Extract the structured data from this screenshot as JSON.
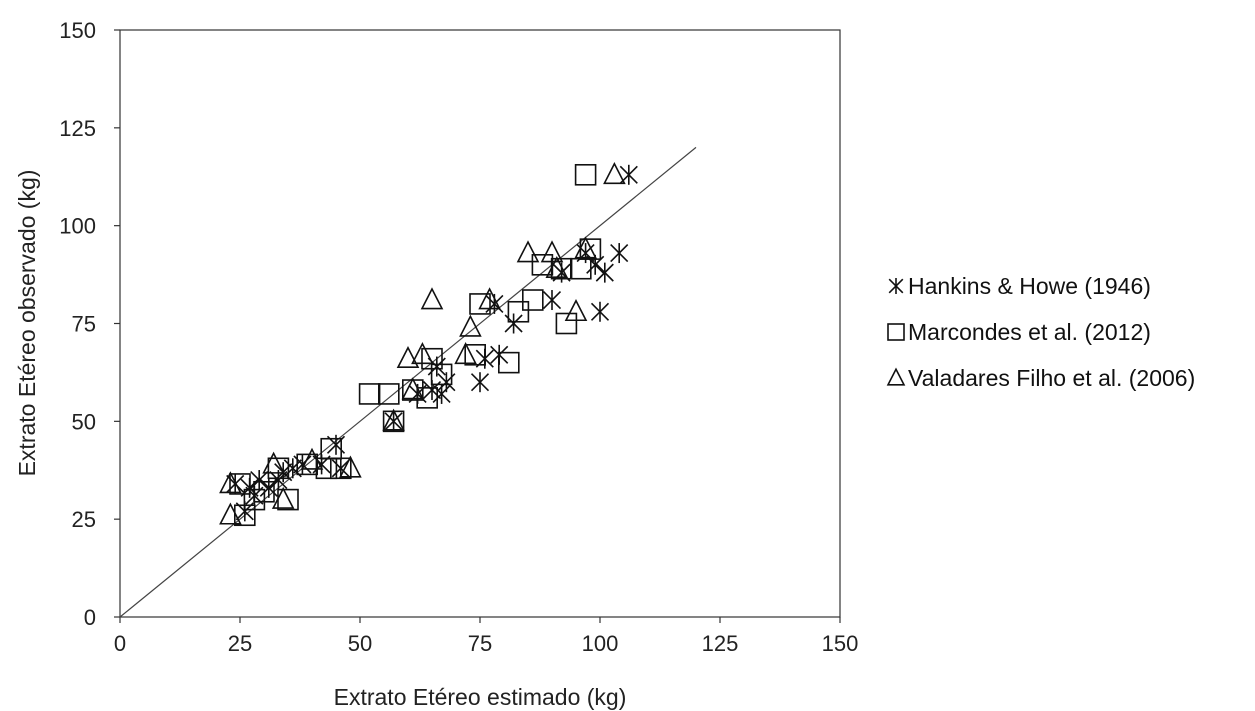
{
  "chart_data": {
    "type": "scatter",
    "title": "",
    "xlabel": "Extrato Etéreo estimado (kg)",
    "ylabel": "Extrato Etéreo observado (kg)",
    "xlim": [
      0,
      150
    ],
    "ylim": [
      0,
      150
    ],
    "xticks": [
      "0",
      "25",
      "50",
      "75",
      "100",
      "125",
      "150"
    ],
    "yticks": [
      "0",
      "25",
      "50",
      "75",
      "100",
      "125",
      "150"
    ],
    "grid": false,
    "legend_position": "right",
    "reference_line": {
      "x": [
        0,
        120
      ],
      "y": [
        0,
        120
      ]
    },
    "series": [
      {
        "name": "Hankins & Howe (1946)",
        "marker": "asterisk",
        "points": [
          [
            106,
            113
          ],
          [
            104,
            93
          ],
          [
            101,
            88
          ],
          [
            99,
            90
          ],
          [
            100,
            78
          ],
          [
            97,
            93
          ],
          [
            90,
            81
          ],
          [
            92,
            88
          ],
          [
            82,
            75
          ],
          [
            78,
            80
          ],
          [
            79,
            67
          ],
          [
            76,
            66
          ],
          [
            75,
            60
          ],
          [
            68,
            60
          ],
          [
            67,
            57
          ],
          [
            66,
            64
          ],
          [
            65,
            58
          ],
          [
            62,
            57
          ],
          [
            57,
            50
          ],
          [
            46,
            38
          ],
          [
            45,
            44
          ],
          [
            42,
            39
          ],
          [
            38,
            39
          ],
          [
            36,
            38
          ],
          [
            34,
            37
          ],
          [
            33,
            35
          ],
          [
            31,
            33
          ],
          [
            29,
            35
          ],
          [
            28,
            31
          ],
          [
            27,
            33
          ],
          [
            26,
            27
          ],
          [
            24,
            34
          ]
        ]
      },
      {
        "name": "Marcondes et al. (2012)",
        "marker": "square",
        "points": [
          [
            97,
            113
          ],
          [
            98,
            94
          ],
          [
            96,
            89
          ],
          [
            92,
            89
          ],
          [
            93,
            75
          ],
          [
            88,
            90
          ],
          [
            86,
            81
          ],
          [
            83,
            78
          ],
          [
            81,
            65
          ],
          [
            75,
            80
          ],
          [
            74,
            67
          ],
          [
            67,
            62
          ],
          [
            65,
            66
          ],
          [
            64,
            56
          ],
          [
            61,
            58
          ],
          [
            56,
            57
          ],
          [
            52,
            57
          ],
          [
            57,
            50
          ],
          [
            46,
            38
          ],
          [
            44,
            43
          ],
          [
            43,
            38
          ],
          [
            39,
            39
          ],
          [
            35,
            30
          ],
          [
            33,
            38
          ],
          [
            30,
            32
          ],
          [
            28,
            30
          ],
          [
            26,
            26
          ],
          [
            25,
            34
          ]
        ]
      },
      {
        "name": "Valadares Filho et al. (2006)",
        "marker": "triangle",
        "points": [
          [
            103,
            113
          ],
          [
            97,
            94
          ],
          [
            91,
            89
          ],
          [
            90,
            93
          ],
          [
            85,
            93
          ],
          [
            95,
            78
          ],
          [
            77,
            81
          ],
          [
            65,
            81
          ],
          [
            73,
            74
          ],
          [
            72,
            67
          ],
          [
            63,
            67
          ],
          [
            60,
            66
          ],
          [
            61,
            58
          ],
          [
            57,
            50
          ],
          [
            48,
            38
          ],
          [
            40,
            40
          ],
          [
            34,
            30
          ],
          [
            32,
            39
          ],
          [
            23,
            34
          ],
          [
            23,
            26
          ]
        ]
      }
    ]
  }
}
